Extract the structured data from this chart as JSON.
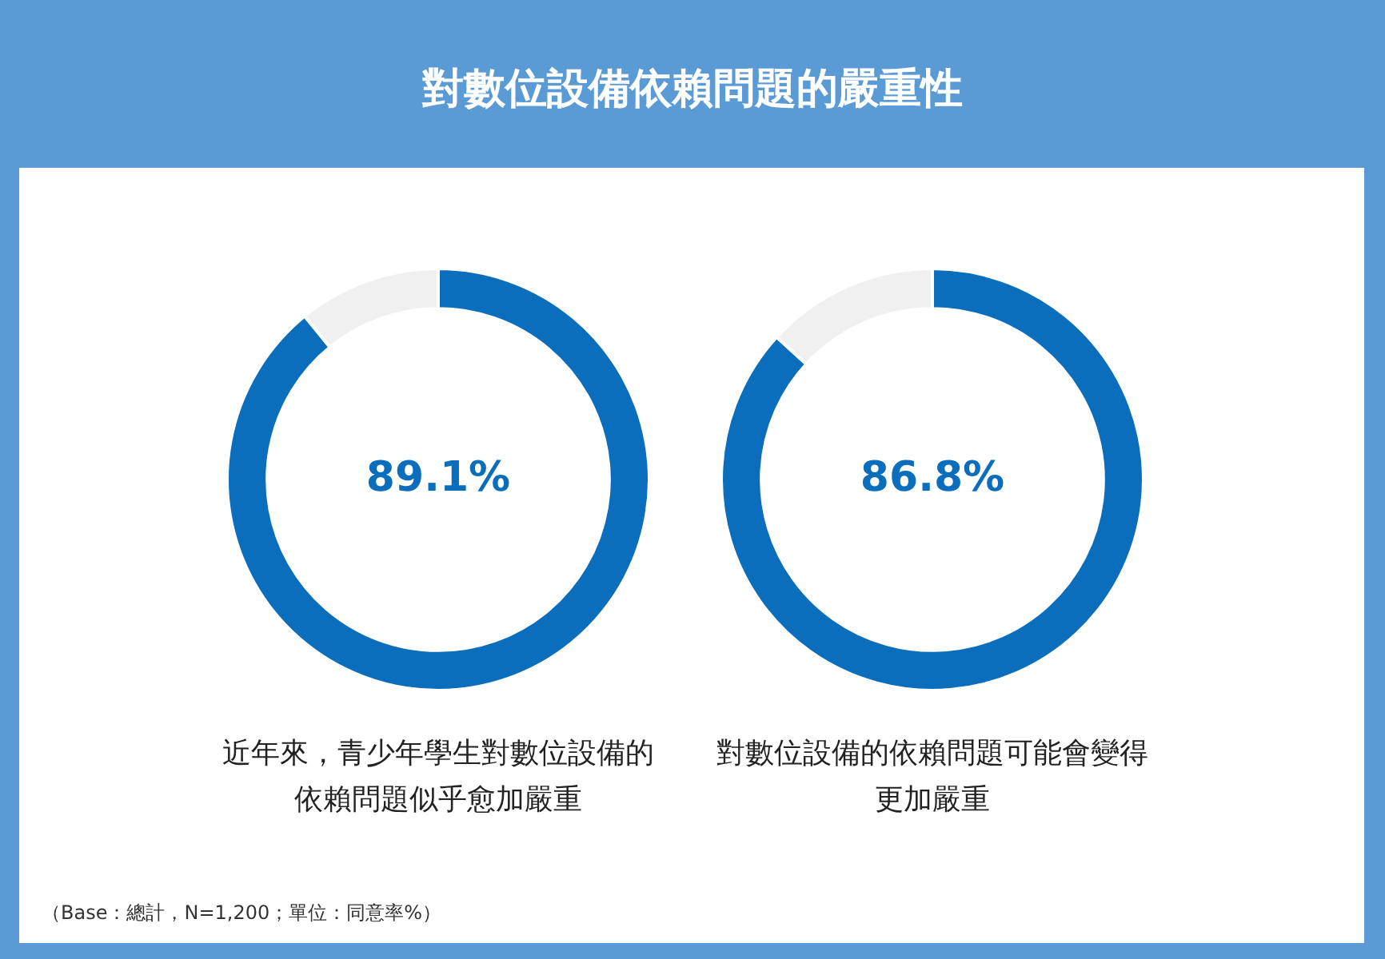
{
  "chart_data": [
    {
      "type": "donut",
      "title": "對數位設備依賴問題的嚴重性",
      "categories": [
        null,
        null
      ],
      "values": [
        89.1,
        10.9
      ],
      "colors": [
        "#0a6ebd",
        "#f0f0f0"
      ],
      "value_labels": [
        "89.1%",
        null
      ],
      "xlabel": "近年來，青少年學生對數位設備的依賴問題似乎愈加嚴重",
      "annotations": [
        "（Base：總計，N=1,200；單位：同意率%）"
      ]
    },
    {
      "type": "donut",
      "categories": [
        null,
        null
      ],
      "values": [
        86.8,
        13.2
      ],
      "colors": [
        "#0a6ebd",
        "#f0f0f0"
      ],
      "value_labels": [
        "86.8%",
        null
      ],
      "xlabel": "對數位設備的依賴問題可能會變得更加嚴重"
    }
  ]
}
